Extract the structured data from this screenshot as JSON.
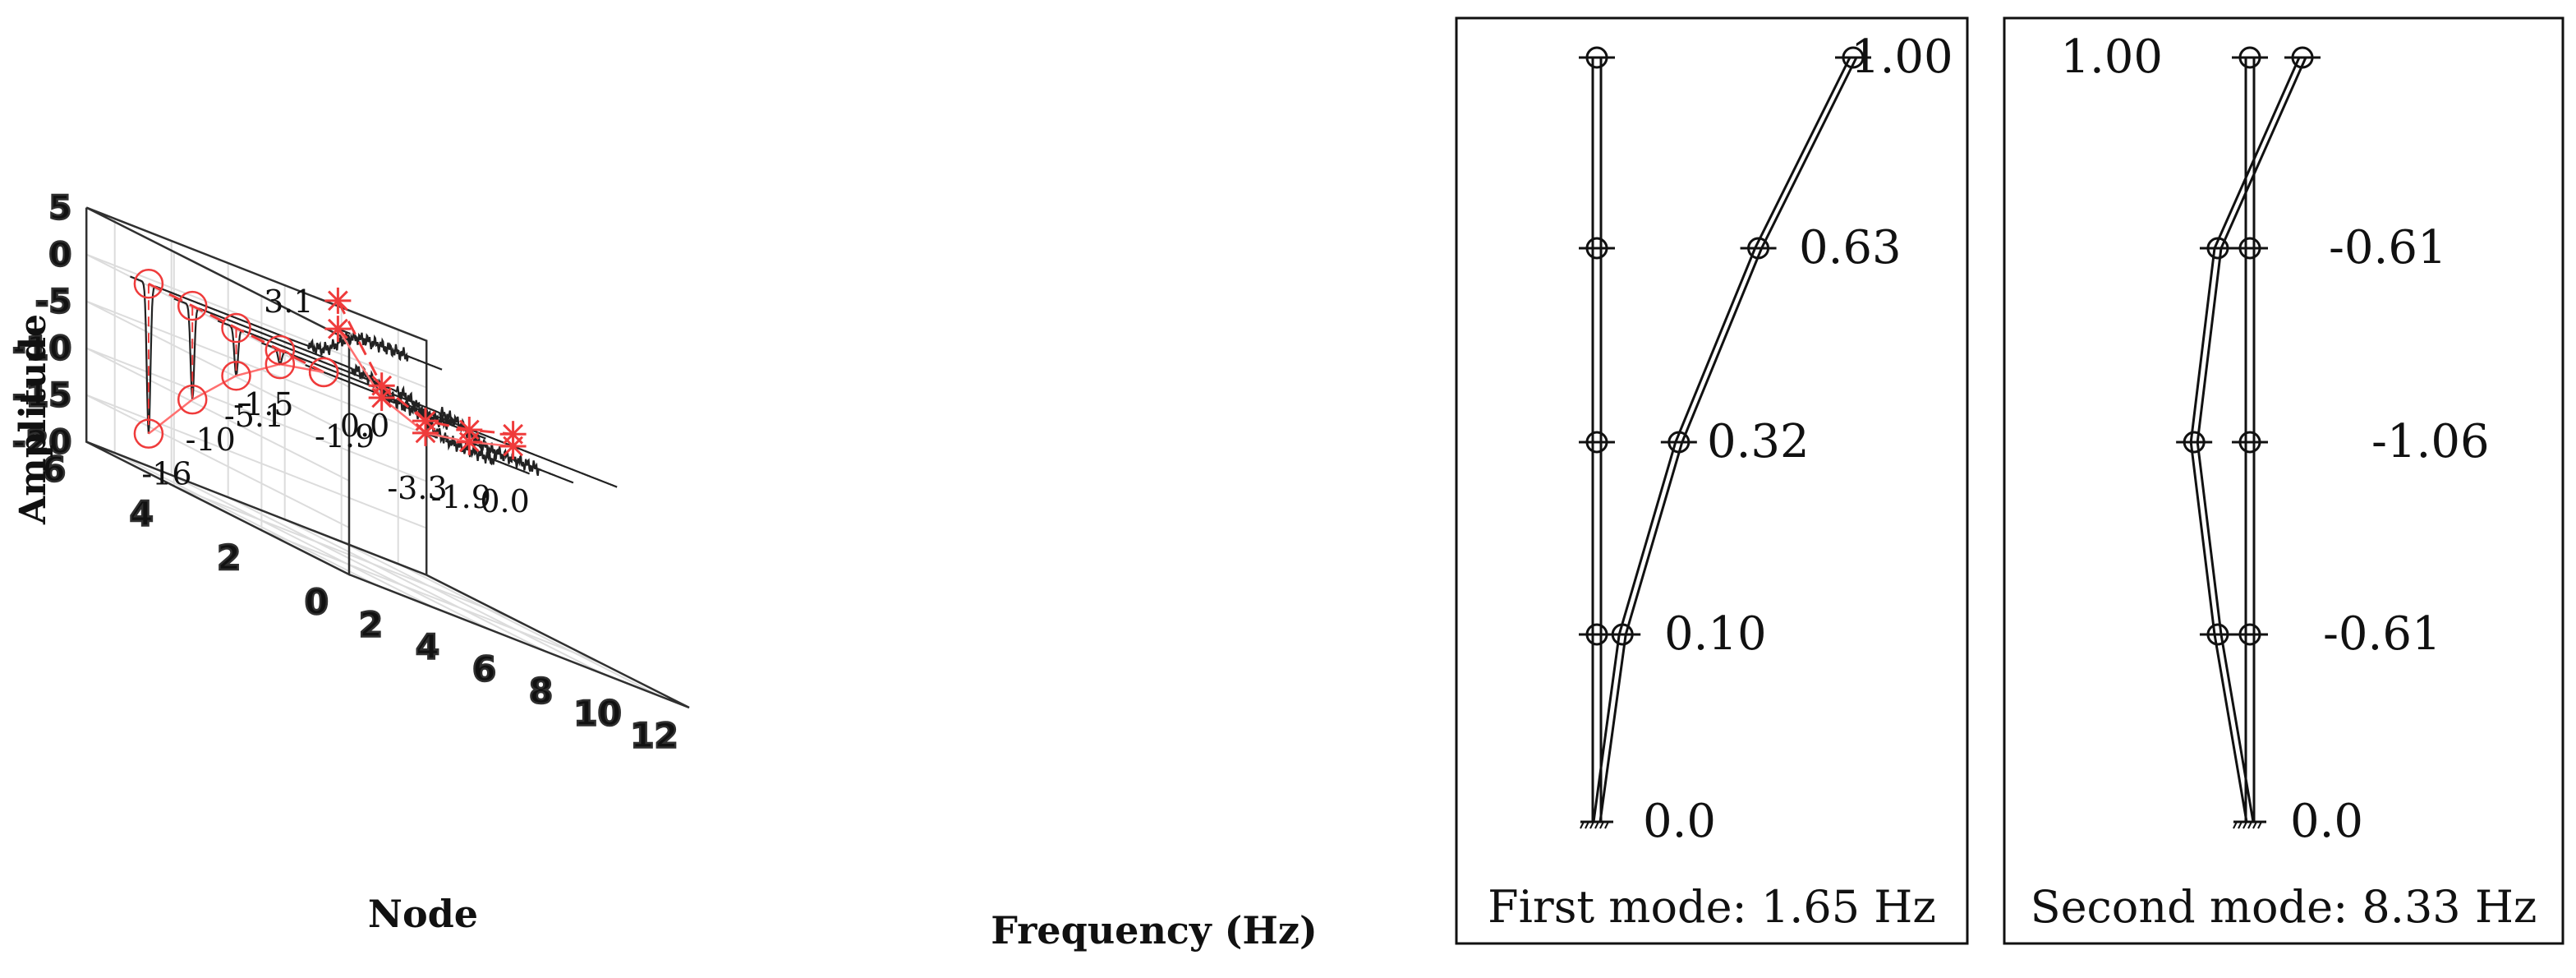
{
  "chart_data": [
    {
      "type": "line",
      "subtype": "3d-spectra-waterfall",
      "xlabel": "Frequency (Hz)",
      "ylabel": "Node",
      "zlabel": "Amplitude",
      "x_ticks": [
        "2",
        "4",
        "6",
        "8",
        "10",
        "12"
      ],
      "y_ticks": [
        "0",
        "2",
        "4",
        "6"
      ],
      "z_ticks": [
        "5",
        "0",
        "-5",
        "-10",
        "-15",
        "-20"
      ],
      "xlim": [
        1,
        13
      ],
      "ylim": [
        0,
        6
      ],
      "zlim": [
        -20,
        5
      ],
      "grid": true,
      "first_peak": {
        "frequency": 1.65,
        "nodes": [
          5,
          4,
          3,
          2,
          1
        ],
        "values": [
          -16,
          -10,
          -5.1,
          -1.5,
          0.0
        ],
        "labels": [
          "-16",
          "-10",
          "-5.1",
          "-1.5",
          "0.0"
        ]
      },
      "second_peak": {
        "frequency": 8.33,
        "nodes": [
          5,
          4,
          3,
          2,
          1
        ],
        "values": [
          3.1,
          -1.9,
          -3.3,
          -1.9,
          0.0
        ],
        "labels": [
          "3.1",
          "-1.9",
          "-3.3",
          "-1.9",
          "0.0"
        ]
      }
    },
    {
      "type": "line",
      "subtype": "mode-shape",
      "title": "First mode: 1.65 Hz",
      "values": [
        1.0,
        0.63,
        0.32,
        0.1,
        0.0
      ],
      "labels": [
        "1.00",
        "0.63",
        "0.32",
        "0.10",
        "0.0"
      ]
    },
    {
      "type": "line",
      "subtype": "mode-shape",
      "title": "Second mode: 8.33 Hz",
      "values": [
        1.0,
        -0.61,
        -1.06,
        -0.61,
        0.0
      ],
      "labels": [
        "1.00",
        "-0.61",
        "-1.06",
        "-0.61",
        "0.0"
      ]
    }
  ]
}
